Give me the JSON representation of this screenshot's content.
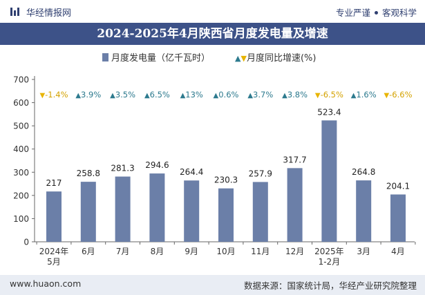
{
  "header": {
    "brand": "华经情报网",
    "slogan_left": "专业严谨",
    "slogan_right": "客观科学",
    "logo_icon": "bar-logo-icon",
    "brand_color": "#2f3f70"
  },
  "title": "2024-2025年4月陕西省月度发电量及增速",
  "legend": {
    "series1": "月度发电量（亿千瓦时）",
    "series2": "月度同比增速(%)"
  },
  "footer": {
    "website": "www.huaon.com",
    "source": "数据来源：国家统计局，华经产业研究院整理"
  },
  "colors": {
    "bar": "#6b7fa8",
    "title_bg": "#3d5288",
    "up": "#2d7a8e",
    "down": "#e8b400",
    "footer_bg": "#e9edf4"
  },
  "chart_data": {
    "type": "bar",
    "categories": [
      "2024年\n5月",
      "6月",
      "7月",
      "8月",
      "9月",
      "10月",
      "11月",
      "12月",
      "2025年\n1-2月",
      "3月",
      "4月"
    ],
    "series": [
      {
        "name": "月度发电量（亿千瓦时）",
        "values": [
          217,
          258.8,
          281.3,
          294.6,
          264.4,
          230.3,
          257.9,
          317.7,
          523.4,
          264.8,
          204.1
        ]
      },
      {
        "name": "月度同比增速(%)",
        "values": [
          -1.4,
          3.9,
          3.5,
          6.5,
          13,
          0.6,
          3.7,
          3.8,
          -6.5,
          1.6,
          -6.6
        ]
      }
    ],
    "growth_labels": [
      "-1.4%",
      "3.9%",
      "3.5%",
      "6.5%",
      "13%",
      "0.6%",
      "3.7%",
      "3.8%",
      "-6.5%",
      "1.6%",
      "-6.6%"
    ],
    "value_labels": [
      "217",
      "258.8",
      "281.3",
      "294.6",
      "264.4",
      "230.3",
      "257.9",
      "317.7",
      "523.4",
      "264.8",
      "204.1"
    ],
    "ylim": [
      0,
      700
    ],
    "yticks": [
      0,
      100,
      200,
      300,
      400,
      500,
      600,
      700
    ],
    "grid": false,
    "legend_position": "top-center"
  }
}
